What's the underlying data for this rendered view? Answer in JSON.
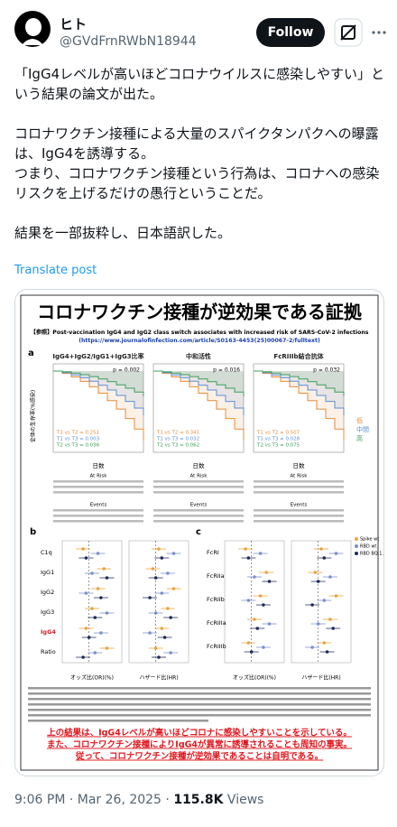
{
  "header": {
    "name": "ヒト",
    "handle": "@GVdFrnRWbN18944",
    "follow": "Follow"
  },
  "body": {
    "paragraphs": [
      "「IgG4レベルが高いほどコロナウイルスに感染しやすい」という結果の論文が出た。",
      "コロナワクチン接種による大量のスパイクタンパクへの曝露は、IgG4を誘導する。\nつまり、コロナワクチン接種という行為は、コロナへの感染リスクを上げるだけの愚行ということだ。",
      "結果を一部抜粋し、日本語訳した。"
    ],
    "translate": "Translate post"
  },
  "image": {
    "title": "コロナワクチン接種が逆効果である証拠",
    "reference": "【参照】Post-vaccination IgG4 and IgG2 class switch associates with increased risk of SARS-CoV-2 infections",
    "url": "(https://www.journalofinfection.com/article/S0163-4453(25)00067-2/fulltext)",
    "panel_a": {
      "letter": "a",
      "y_label": "全体の生存率(%感染)",
      "x_label": "日数",
      "plots": [
        {
          "title": "IgG4+IgG2/IgG1+IgG3比率",
          "p": "p = 0.002",
          "stats": [
            "T1 vs T2 = 0.251",
            "T1 vs T3 = 0.003",
            "T2 vs T3 = 0.036"
          ]
        },
        {
          "title": "中和活性",
          "p": "p = 0.016",
          "stats": [
            "T1 vs T2 = 0.341",
            "T1 vs T3 = 0.032",
            "T2 vs T3 = 0.062"
          ]
        },
        {
          "title": "FcRIIIb結合抗体",
          "p": "p = 0.032",
          "stats": [
            "T1 vs T2 = 0.507",
            "T1 vs T3 = 0.028",
            "T2 vs T3 = 0.075"
          ]
        }
      ],
      "legend": [
        "低",
        "中間",
        "高"
      ],
      "at_risk": "At Risk",
      "events": "Events"
    },
    "panel_b": {
      "letter": "b",
      "rows": [
        "C1q",
        "IgG1",
        "IgG2",
        "IgG3",
        "IgG4",
        "Ratio"
      ],
      "x_left": "オッズ比(OR)(%)",
      "x_right": "ハザード比(HR)"
    },
    "panel_c": {
      "letter": "c",
      "rows": [
        "FcRI",
        "FcRIIa",
        "FcRIIb",
        "FcRIIIa",
        "FcRIIIb"
      ],
      "x_left": "オッズ比(OR)(%)",
      "x_right": "ハザード比(HR)",
      "legend": [
        "Spike wt",
        "RBD wt",
        "RBD BQ.1.1"
      ]
    },
    "conclusion": [
      "上の結果は、IgG4レベルが高いほどコロナに感染しやすいことを示している。",
      "また、コロナワクチン接種によりIgG4が異常に誘導されることも周知の事実。",
      "従って、コロナワクチン接種が逆効果であることは自明である。"
    ]
  },
  "footer": {
    "time": "9:06 PM · Mar 26, 2025 · ",
    "views": "115.8K",
    "views_label": " Views"
  }
}
